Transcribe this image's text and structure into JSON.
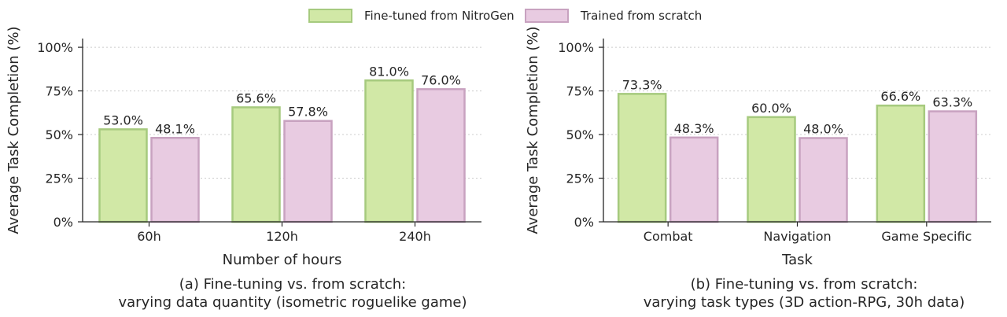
{
  "legend": [
    {
      "name": "Fine-tuned from NitroGen",
      "fill": "#d1e8a6",
      "stroke": "#a6ca7e"
    },
    {
      "name": "Trained from scratch",
      "fill": "#e8cbe1",
      "stroke": "#c8a2c0"
    }
  ],
  "chart_data": [
    {
      "type": "bar",
      "categories": [
        "60h",
        "120h",
        "240h"
      ],
      "series": [
        {
          "name": "Fine-tuned from NitroGen",
          "values": [
            53.0,
            65.6,
            81.0
          ],
          "labels": [
            "53.0%",
            "65.6%",
            "81.0%"
          ]
        },
        {
          "name": "Trained from scratch",
          "values": [
            48.1,
            57.8,
            76.0
          ],
          "labels": [
            "48.1%",
            "57.8%",
            "76.0%"
          ]
        }
      ],
      "xlabel": "Number of hours",
      "ylabel": "Average Task Completion (%)",
      "ylim": [
        0,
        105
      ],
      "yticks": [
        0,
        25,
        50,
        75,
        100
      ],
      "ytick_labels": [
        "0%",
        "25%",
        "50%",
        "75%",
        "100%"
      ],
      "grid": "y-dotted",
      "caption_lines": [
        "(a) Fine-tuning vs. from scratch:",
        "varying data quantity (isometric roguelike game)"
      ]
    },
    {
      "type": "bar",
      "categories": [
        "Combat",
        "Navigation",
        "Game Specific"
      ],
      "series": [
        {
          "name": "Fine-tuned from NitroGen",
          "values": [
            73.3,
            60.0,
            66.6
          ],
          "labels": [
            "73.3%",
            "60.0%",
            "66.6%"
          ]
        },
        {
          "name": "Trained from scratch",
          "values": [
            48.3,
            48.0,
            63.3
          ],
          "labels": [
            "48.3%",
            "48.0%",
            "63.3%"
          ]
        }
      ],
      "xlabel": "Task",
      "ylabel": "Average Task Completion (%)",
      "ylim": [
        0,
        105
      ],
      "yticks": [
        0,
        25,
        50,
        75,
        100
      ],
      "ytick_labels": [
        "0%",
        "25%",
        "50%",
        "75%",
        "100%"
      ],
      "grid": "y-dotted",
      "caption_lines": [
        "(b) Fine-tuning vs. from scratch:",
        "varying task types (3D action-RPG, 30h data)"
      ]
    }
  ]
}
